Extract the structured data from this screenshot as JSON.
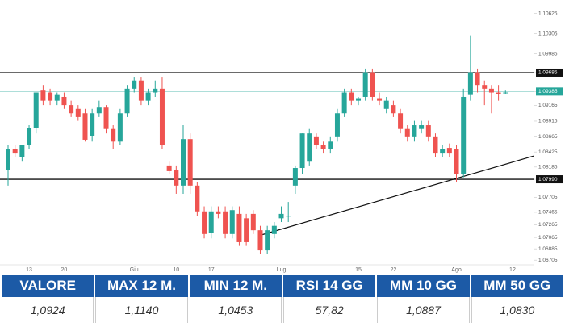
{
  "chart_data": {
    "type": "candlestick",
    "categories": [
      null,
      null,
      null,
      "13",
      null,
      null,
      null,
      null,
      "20",
      null,
      null,
      null,
      null,
      null,
      null,
      null,
      null,
      null,
      "Giu",
      null,
      null,
      null,
      null,
      null,
      "10",
      null,
      null,
      null,
      null,
      "17",
      null,
      null,
      null,
      null,
      null,
      null,
      null,
      null,
      null,
      "Lug",
      null,
      null,
      null,
      null,
      null,
      null,
      null,
      null,
      null,
      null,
      "15",
      null,
      null,
      null,
      null,
      "22",
      null,
      null,
      null,
      null,
      null,
      null,
      null,
      null,
      "Ago",
      null,
      null,
      null,
      null,
      null,
      null,
      null,
      "12"
    ],
    "open": [
      1.0814,
      1.0847,
      1.0834,
      1.0853,
      1.0881,
      1.094,
      1.0937,
      1.0924,
      1.093,
      1.0917,
      1.0911,
      1.0904,
      1.0868,
      1.0904,
      1.0913,
      1.0879,
      1.0859,
      1.0904,
      1.0943,
      1.0956,
      1.0924,
      1.0937,
      1.0943,
      1.0821,
      1.0814,
      1.0789,
      1.0863,
      1.0789,
      1.0748,
      1.0714,
      1.0748,
      1.0748,
      1.0712,
      1.0744,
      1.0737,
      1.0744,
      1.0718,
      1.0686,
      1.0712,
      1.0737,
      1.074,
      1.0789,
      1.0817,
      1.0827,
      1.0866,
      1.0853,
      1.0847,
      1.0866,
      1.0904,
      1.0937,
      1.0924,
      1.093,
      1.0969,
      1.0928,
      1.0911,
      1.0917,
      1.0904,
      1.0879,
      1.0866,
      1.0879,
      1.0885,
      1.0866,
      1.084,
      1.0849,
      1.0847,
      1.0808,
      1.0933,
      1.0969,
      1.0949,
      1.0943,
      1.0937,
      1.0937,
      null
    ],
    "high": [
      1.0853,
      1.0853,
      1.0853,
      1.0885,
      1.0937,
      1.0949,
      1.0943,
      1.0937,
      1.0937,
      1.0924,
      1.0917,
      1.0911,
      1.0911,
      1.0924,
      1.0917,
      1.0885,
      1.0911,
      1.0949,
      1.0962,
      1.0962,
      1.0943,
      1.0956,
      1.0962,
      1.0827,
      1.0821,
      1.0885,
      1.0872,
      1.0795,
      1.0756,
      1.0756,
      1.0756,
      1.0756,
      1.0756,
      1.0756,
      1.0744,
      1.075,
      1.0725,
      1.0725,
      1.0731,
      1.0756,
      1.0763,
      1.0821,
      1.0872,
      1.0879,
      1.0872,
      1.0859,
      1.0866,
      1.0911,
      1.0943,
      1.0943,
      1.093,
      1.0975,
      1.0975,
      1.0937,
      1.093,
      1.0924,
      1.0911,
      1.0885,
      1.0892,
      1.0892,
      1.0892,
      1.0872,
      1.0853,
      1.0856,
      1.0853,
      1.0943,
      1.1028,
      1.0975,
      1.0956,
      1.0949,
      1.0949,
      1.094,
      null
    ],
    "low": [
      1.0789,
      1.0834,
      1.0827,
      1.0847,
      1.0872,
      1.0917,
      1.0917,
      1.0917,
      1.0911,
      1.0898,
      1.0892,
      1.0859,
      1.0859,
      1.0898,
      1.0872,
      1.0847,
      1.0853,
      1.0898,
      1.0937,
      1.0917,
      1.0917,
      1.093,
      1.0847,
      1.0808,
      1.0776,
      1.0776,
      1.0776,
      1.074,
      1.0705,
      1.0705,
      1.0737,
      1.0705,
      1.0705,
      1.0693,
      1.0693,
      1.0712,
      1.068,
      1.068,
      1.0705,
      1.0731,
      1.0731,
      1.0776,
      1.0808,
      1.0821,
      1.0847,
      1.084,
      1.084,
      1.0859,
      1.0898,
      1.0917,
      1.0917,
      1.0924,
      1.0924,
      1.0917,
      1.0904,
      1.0898,
      1.0872,
      1.0859,
      1.0859,
      1.0872,
      1.0859,
      1.0834,
      1.0834,
      1.0834,
      1.0795,
      1.0802,
      1.0924,
      1.0937,
      1.0917,
      1.0904,
      1.0924,
      1.0934,
      null
    ],
    "close": [
      1.0847,
      1.084,
      1.0853,
      1.0881,
      1.0937,
      1.0924,
      1.0924,
      1.0933,
      1.0917,
      1.0904,
      1.0898,
      1.0862,
      1.0904,
      1.0913,
      1.0879,
      1.0859,
      1.0904,
      1.0943,
      1.0956,
      1.0924,
      1.0937,
      1.0943,
      1.0853,
      1.0812,
      1.0789,
      1.0863,
      1.0789,
      1.0748,
      1.0712,
      1.0748,
      1.0744,
      1.0712,
      1.075,
      1.0699,
      1.0699,
      1.0718,
      1.0686,
      1.0718,
      1.0725,
      1.0744,
      1.0741,
      1.0817,
      1.0872,
      1.0872,
      1.0853,
      1.0847,
      1.0859,
      1.0904,
      1.0937,
      1.0924,
      1.0928,
      1.0969,
      1.093,
      1.0924,
      1.0924,
      1.0904,
      1.0879,
      1.0866,
      1.0885,
      1.0885,
      1.0866,
      1.084,
      1.0847,
      1.084,
      1.0808,
      1.093,
      1.0969,
      1.0949,
      1.0943,
      1.0937,
      1.0934,
      1.0937,
      null
    ],
    "up_color": "#26a69a",
    "down_color": "#ef5350",
    "ylim": [
      1.0663,
      1.1084
    ],
    "yticks": [
      {
        "value": 1.10625,
        "label": "1,10625"
      },
      {
        "value": 1.10305,
        "label": "1,10305"
      },
      {
        "value": 1.09985,
        "label": "1,09985"
      },
      {
        "value": 1.09685,
        "label": "1,09685"
      },
      {
        "value": 1.09385,
        "label": "1,09385"
      },
      {
        "value": 1.09165,
        "label": "1,09165"
      },
      {
        "value": 1.08915,
        "label": "1,08915"
      },
      {
        "value": 1.08665,
        "label": "1,08665"
      },
      {
        "value": 1.08425,
        "label": "1,08425"
      },
      {
        "value": 1.08185,
        "label": "1,08185"
      },
      {
        "value": 1.0799,
        "label": "1,07990"
      },
      {
        "value": 1.07705,
        "label": "1,07705"
      },
      {
        "value": 1.07465,
        "label": "1,07465"
      },
      {
        "value": 1.07265,
        "label": "1,07265"
      },
      {
        "value": 1.07065,
        "label": "1,07065"
      },
      {
        "value": 1.06885,
        "label": "1,06885"
      },
      {
        "value": 1.06705,
        "label": "1,06705"
      }
    ],
    "levels": [
      {
        "value": 1.09685,
        "color": "#111111"
      },
      {
        "value": 1.09385,
        "color": "#26a69a"
      },
      {
        "value": 1.0799,
        "color": "#111111"
      }
    ],
    "trendline": {
      "x": [
        36,
        75
      ],
      "y": [
        1.071,
        1.0836
      ],
      "color": "#111111"
    }
  },
  "table": {
    "headers": [
      "VALORE",
      "MAX 12 M.",
      "MIN 12 M.",
      "RSI 14 GG",
      "MM 10 GG",
      "MM 50 GG"
    ],
    "values": [
      "1,0924",
      "1,1140",
      "1,0453",
      "57,82",
      "1,0887",
      "1,0830"
    ]
  }
}
